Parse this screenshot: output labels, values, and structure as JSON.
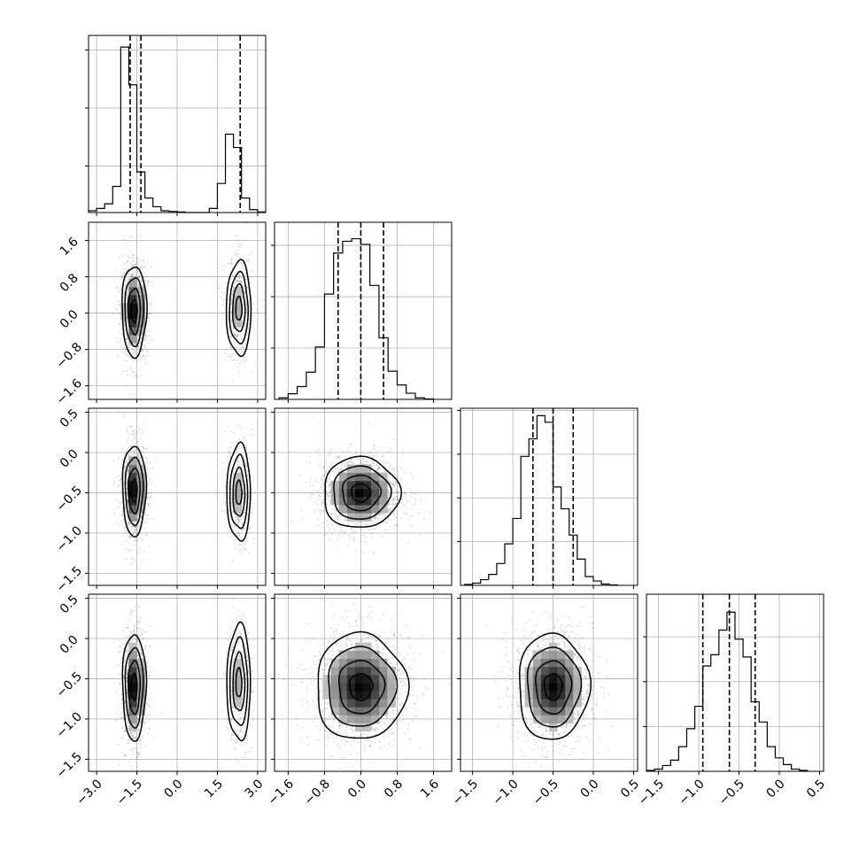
{
  "chart_data": {
    "type": "corner",
    "title": "",
    "grid": true,
    "parameters": [
      {
        "axis_range": [
          -3.3,
          3.3
        ],
        "ticks": [
          -3.0,
          -1.5,
          0.0,
          1.5,
          3.0
        ],
        "tick_labels": [
          "−3.0",
          "−1.5",
          "0.0",
          "1.5",
          "3.0"
        ],
        "quantiles": [
          -1.75,
          -1.35,
          2.35
        ],
        "histogram": {
          "bin_edges": [
            -3.3,
            -3.0,
            -2.7,
            -2.4,
            -2.1,
            -1.8,
            -1.5,
            -1.2,
            -0.9,
            -0.6,
            -0.3,
            0.0,
            0.3,
            0.6,
            0.9,
            1.2,
            1.5,
            1.8,
            2.1,
            2.4,
            2.7,
            3.0,
            3.3
          ],
          "counts": [
            0.3,
            0.7,
            1.5,
            4.5,
            28.5,
            22.0,
            7.0,
            2.5,
            1.0,
            0.3,
            0.2,
            0.1,
            0,
            0,
            0,
            0.7,
            5.0,
            13.5,
            11.2,
            2.5,
            0.5,
            0.1
          ],
          "ylim": [
            0,
            30.5
          ],
          "y_grid": [
            8,
            18,
            28
          ]
        }
      },
      {
        "axis_range": [
          -1.9,
          2.0
        ],
        "ticks": [
          -1.6,
          -0.8,
          0.0,
          0.8,
          1.6
        ],
        "tick_labels": [
          "−1.6",
          "−0.8",
          "0.0",
          "0.8",
          "1.6"
        ],
        "quantiles": [
          -0.5,
          0.0,
          0.5
        ],
        "histogram": {
          "bin_edges": [
            -1.8,
            -1.6,
            -1.4,
            -1.2,
            -1.0,
            -0.8,
            -0.6,
            -0.4,
            -0.2,
            0.0,
            0.2,
            0.4,
            0.6,
            0.8,
            1.0,
            1.2,
            1.4,
            1.6
          ],
          "counts": [
            0.3,
            1.1,
            2.5,
            5.3,
            10.2,
            20.5,
            28.5,
            30.8,
            31.3,
            30.2,
            22.2,
            12.0,
            5.5,
            2.8,
            1.2,
            0.3,
            0.1
          ],
          "ylim": [
            0,
            34.5
          ],
          "y_grid": [
            10,
            20,
            30
          ]
        }
      },
      {
        "axis_range": [
          -1.65,
          0.55
        ],
        "ticks": [
          -1.5,
          -1.0,
          -0.5,
          0.0,
          0.5
        ],
        "tick_labels": [
          "−1.5",
          "−1.0",
          "−0.5",
          "0.0",
          "0.5"
        ],
        "quantiles": [
          -0.75,
          -0.5,
          -0.25
        ],
        "histogram": {
          "bin_edges": [
            -1.6,
            -1.5,
            -1.4,
            -1.3,
            -1.2,
            -1.1,
            -1.0,
            -0.9,
            -0.8,
            -0.7,
            -0.6,
            -0.5,
            -0.4,
            -0.3,
            -0.2,
            -0.1,
            0.0,
            0.1,
            0.2,
            0.3
          ],
          "counts": [
            0.2,
            0.5,
            1.3,
            2.5,
            5.0,
            9.5,
            15.3,
            29.5,
            33.5,
            38.8,
            37.3,
            22.5,
            17.5,
            11.5,
            6.0,
            2.0,
            1.0,
            0.3,
            0.1
          ],
          "ylim": [
            0,
            40.5
          ],
          "y_grid": [
            10,
            20,
            30,
            40
          ]
        }
      },
      {
        "axis_range": [
          -1.65,
          0.55
        ],
        "ticks": [
          -1.5,
          -1.0,
          -0.5,
          0.0,
          0.5
        ],
        "tick_labels": [
          "−1.5",
          "−1.0",
          "−0.5",
          "0.0",
          "0.5"
        ],
        "quantiles": [
          -0.95,
          -0.62,
          -0.3
        ],
        "histogram": {
          "bin_edges": [
            -1.65,
            -1.55,
            -1.45,
            -1.35,
            -1.25,
            -1.15,
            -1.05,
            -0.95,
            -0.85,
            -0.75,
            -0.65,
            -0.55,
            -0.45,
            -0.35,
            -0.25,
            -0.15,
            -0.05,
            0.05,
            0.15,
            0.25,
            0.35
          ],
          "counts": [
            0.2,
            0.5,
            1.3,
            2.5,
            5.5,
            9.5,
            14.5,
            23.5,
            26.0,
            31.5,
            35.5,
            29.5,
            25.5,
            15.5,
            11.0,
            5.5,
            3.0,
            1.5,
            0.5,
            0.2
          ],
          "ylim": [
            0,
            39.5
          ],
          "y_grid": [
            10,
            20,
            30
          ]
        }
      }
    ],
    "joint_panels": [
      {
        "x_param": 0,
        "y_param": 1,
        "modes": [
          {
            "cx": -1.6,
            "cy": 0.05,
            "sx": 0.23,
            "sy": 0.5,
            "weight": 2.4
          },
          {
            "cx": 2.3,
            "cy": 0.1,
            "sx": 0.23,
            "sy": 0.52,
            "weight": 1.0
          }
        ]
      },
      {
        "x_param": 0,
        "y_param": 2,
        "modes": [
          {
            "cx": -1.6,
            "cy": -0.47,
            "sx": 0.22,
            "sy": 0.28,
            "weight": 2.4
          },
          {
            "cx": 2.3,
            "cy": -0.5,
            "sx": 0.22,
            "sy": 0.3,
            "weight": 1.0
          }
        ]
      },
      {
        "x_param": 1,
        "y_param": 2,
        "modes": [
          {
            "cx": 0.0,
            "cy": -0.5,
            "sx": 0.42,
            "sy": 0.22,
            "weight": 1.0
          }
        ]
      },
      {
        "x_param": 0,
        "y_param": 3,
        "modes": [
          {
            "cx": -1.6,
            "cy": -0.6,
            "sx": 0.22,
            "sy": 0.33,
            "weight": 2.4
          },
          {
            "cx": 2.3,
            "cy": -0.55,
            "sx": 0.22,
            "sy": 0.36,
            "weight": 1.0
          }
        ]
      },
      {
        "x_param": 1,
        "y_param": 3,
        "modes": [
          {
            "cx": 0.0,
            "cy": -0.6,
            "sx": 0.5,
            "sy": 0.33,
            "weight": 1.0
          }
        ]
      },
      {
        "x_param": 2,
        "y_param": 3,
        "modes": [
          {
            "cx": -0.5,
            "cy": -0.6,
            "sx": 0.22,
            "sy": 0.33,
            "weight": 1.0
          }
        ]
      }
    ],
    "contour_levels_sigma": [
      0.5,
      1.0,
      1.5,
      2.0
    ]
  }
}
